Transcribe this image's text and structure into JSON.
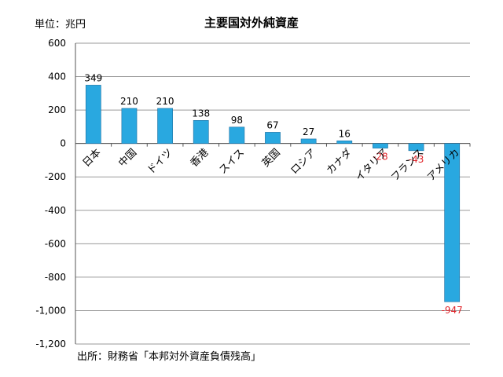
{
  "unit_label": "単位：兆円",
  "source_note": "出所：財務省「本邦対外資産負債残高」",
  "colors": {
    "bar": "#29a8e0",
    "bar_stroke": "#1f6fa0",
    "negative_label": "#e0242a",
    "grid": "#9a9a9a"
  },
  "chart_data": {
    "type": "bar",
    "title": "主要国対外純資産",
    "xlabel": "",
    "ylabel": "",
    "categories": [
      "日本",
      "中国",
      "ドイツ",
      "香港",
      "スイス",
      "英国",
      "ロシア",
      "カナダ",
      "イタリア",
      "フランス",
      "アメリカ"
    ],
    "values": [
      349,
      210,
      210,
      138,
      98,
      67,
      27,
      16,
      -28,
      -43,
      -947
    ],
    "data_labels": [
      "349",
      "210",
      "210",
      "138",
      "98",
      "67",
      "27",
      "16",
      "-28",
      "-43",
      "-947"
    ],
    "ylim": [
      -1200,
      600
    ],
    "yticks": [
      600,
      400,
      200,
      0,
      -200,
      -400,
      -600,
      -800,
      -1000,
      -1200
    ],
    "ytick_labels": [
      "600",
      "400",
      "200",
      "0",
      "-200",
      "-400",
      "-600",
      "-800",
      "-1,000",
      "-1,200"
    ],
    "grid": true,
    "legend": "none"
  }
}
